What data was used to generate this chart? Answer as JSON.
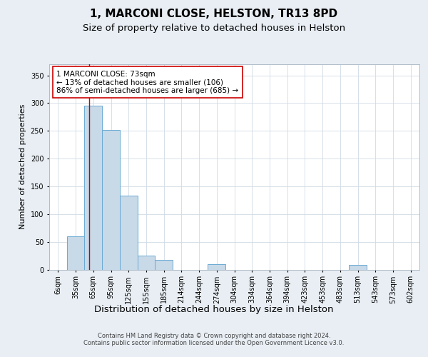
{
  "title": "1, MARCONI CLOSE, HELSTON, TR13 8PD",
  "subtitle": "Size of property relative to detached houses in Helston",
  "xlabel": "Distribution of detached houses by size in Helston",
  "ylabel": "Number of detached properties",
  "bar_labels": [
    "6sqm",
    "35sqm",
    "65sqm",
    "95sqm",
    "125sqm",
    "155sqm",
    "185sqm",
    "214sqm",
    "244sqm",
    "274sqm",
    "304sqm",
    "334sqm",
    "364sqm",
    "394sqm",
    "423sqm",
    "453sqm",
    "483sqm",
    "513sqm",
    "543sqm",
    "573sqm",
    "602sqm"
  ],
  "bar_values": [
    0,
    60,
    295,
    252,
    133,
    25,
    18,
    0,
    0,
    10,
    0,
    0,
    0,
    0,
    0,
    0,
    0,
    8,
    0,
    0,
    0
  ],
  "bar_color": "#c8d9e8",
  "bar_edge_color": "#6aaad4",
  "ylim": [
    0,
    370
  ],
  "red_line_x": 1.77,
  "annotation_text": "1 MARCONI CLOSE: 73sqm\n← 13% of detached houses are smaller (106)\n86% of semi-detached houses are larger (685) →",
  "annotation_box_color": "#ffffff",
  "annotation_box_edge_color": "#cc0000",
  "footer_text": "Contains HM Land Registry data © Crown copyright and database right 2024.\nContains public sector information licensed under the Open Government Licence v3.0.",
  "title_fontsize": 11,
  "subtitle_fontsize": 9.5,
  "ylabel_fontsize": 8,
  "xlabel_fontsize": 9.5,
  "tick_fontsize": 7,
  "annotation_fontsize": 7.5,
  "footer_fontsize": 6,
  "bg_color": "#e8eef4",
  "plot_bg_color": "#ffffff",
  "grid_color": "#d0dae4"
}
